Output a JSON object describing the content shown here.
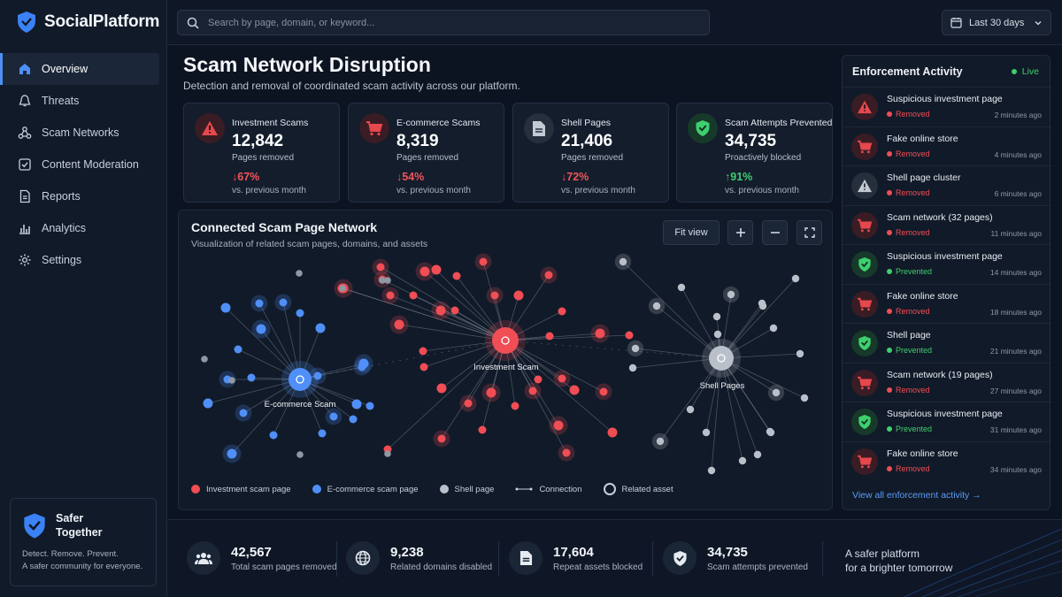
{
  "app": {
    "name": "SocialPlatform"
  },
  "nav": {
    "items": [
      {
        "label": "Overview",
        "icon": "home-icon",
        "active": true
      },
      {
        "label": "Threats",
        "icon": "alert-icon"
      },
      {
        "label": "Scam Networks",
        "icon": "network-icon"
      },
      {
        "label": "Content Moderation",
        "icon": "check-square-icon"
      },
      {
        "label": "Reports",
        "icon": "document-icon"
      },
      {
        "label": "Analytics",
        "icon": "bar-chart-icon"
      },
      {
        "label": "Settings",
        "icon": "gear-icon"
      }
    ]
  },
  "safer": {
    "title": "Safer Together",
    "line1": "Detect. Remove. Prevent.",
    "line2": "A safer community for everyone."
  },
  "search": {
    "placeholder": "Search by page, domain, or keyword..."
  },
  "date_range": {
    "value": "Last 30 days"
  },
  "header": {
    "title": "Scam Network Disruption",
    "subtitle": "Detection and removal of coordinated scam activity across our platform."
  },
  "cards": [
    {
      "label": "Investment Scams",
      "value": "12,842",
      "unit": "Pages removed",
      "change": "67%",
      "direction": "down",
      "compare": "vs. previous month",
      "icon": "warning-icon",
      "color": "#e5484d"
    },
    {
      "label": "E-commerce Scams",
      "value": "8,319",
      "unit": "Pages removed",
      "change": "54%",
      "direction": "down",
      "compare": "vs. previous month",
      "icon": "cart-icon",
      "color": "#e5484d"
    },
    {
      "label": "Shell Pages",
      "value": "21,406",
      "unit": "Pages removed",
      "change": "72%",
      "direction": "down",
      "compare": "vs. previous month",
      "icon": "document-icon",
      "color": "#c3cad4"
    },
    {
      "label": "Scam Attempts Prevented",
      "value": "34,735",
      "unit": "Proactively blocked",
      "change": "91%",
      "direction": "up",
      "compare": "vs. previous month",
      "icon": "shield-check-icon",
      "color": "#3ecf6e"
    }
  ],
  "network": {
    "title": "Connected Scam Page Network",
    "subtitle": "Visualization of related scam pages, domains, and assets",
    "fit_label": "Fit view",
    "hubs": {
      "investment": "Investment Scam",
      "ecommerce": "E-commerce Scam",
      "shell": "Shell Pages"
    },
    "legend": {
      "investment": "Investment scam page",
      "ecommerce": "E-commerce scam page",
      "shell": "Shell page",
      "connection": "Connection",
      "related": "Related asset"
    },
    "colors": {
      "investment": "#f04d55",
      "ecommerce": "#4f8ff7",
      "shell": "#b9c0ca"
    }
  },
  "enforcement": {
    "title": "Enforcement Activity",
    "live": "Live",
    "items": [
      {
        "title": "Suspicious investment page",
        "status": "Removed",
        "time": "2 minutes ago",
        "icon": "warning-icon"
      },
      {
        "title": "Fake online store",
        "status": "Removed",
        "time": "4 minutes ago",
        "icon": "cart-icon"
      },
      {
        "title": "Shell page cluster",
        "status": "Removed",
        "time": "6 minutes ago",
        "icon": "warning-grey-icon"
      },
      {
        "title": "Scam network (32 pages)",
        "status": "Removed",
        "time": "11 minutes ago",
        "icon": "cart-icon"
      },
      {
        "title": "Suspicious investment page",
        "status": "Prevented",
        "time": "14 minutes ago",
        "icon": "shield-check-icon"
      },
      {
        "title": "Fake online store",
        "status": "Removed",
        "time": "18 minutes ago",
        "icon": "cart-icon"
      },
      {
        "title": "Shell page",
        "status": "Prevented",
        "time": "21 minutes ago",
        "icon": "shield-check-icon"
      },
      {
        "title": "Scam network (19 pages)",
        "status": "Removed",
        "time": "27 minutes ago",
        "icon": "cart-icon"
      },
      {
        "title": "Suspicious investment page",
        "status": "Prevented",
        "time": "31 minutes ago",
        "icon": "shield-check-icon"
      },
      {
        "title": "Fake online store",
        "status": "Removed",
        "time": "34 minutes ago",
        "icon": "cart-icon"
      }
    ],
    "view_all": "View all enforcement activity →"
  },
  "bottom": {
    "stats": [
      {
        "value": "42,567",
        "label": "Total scam pages removed",
        "icon": "users-icon"
      },
      {
        "value": "9,238",
        "label": "Related domains disabled",
        "icon": "globe-icon"
      },
      {
        "value": "17,604",
        "label": "Repeat assets blocked",
        "icon": "document-icon"
      },
      {
        "value": "34,735",
        "label": "Scam attempts prevented",
        "icon": "shield-check-icon"
      }
    ],
    "tagline1": "A safer platform",
    "tagline2": "for a brighter tomorrow"
  }
}
